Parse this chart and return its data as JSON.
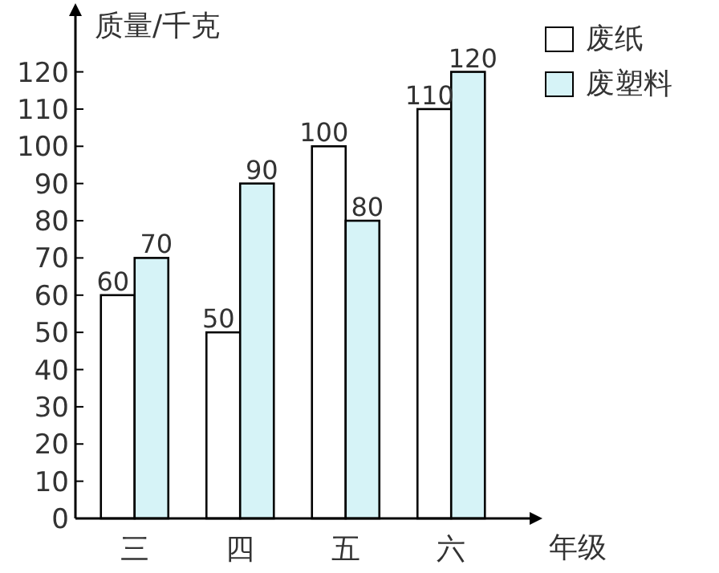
{
  "chart_data": {
    "type": "bar",
    "ylabel": "质量/千克",
    "xlabel": "年级",
    "categories": [
      "三",
      "四",
      "五",
      "六"
    ],
    "series": [
      {
        "name": "废纸",
        "color": "#ffffff",
        "values": [
          60,
          50,
          100,
          110
        ]
      },
      {
        "name": "废塑料",
        "color": "#d6f3f7",
        "values": [
          70,
          90,
          80,
          120
        ]
      }
    ],
    "ylim": [
      0,
      135
    ],
    "yticks": [
      0,
      10,
      20,
      30,
      40,
      50,
      60,
      70,
      80,
      90,
      100,
      110,
      120
    ],
    "data_labels": true,
    "legend": "top right",
    "grid": false
  }
}
